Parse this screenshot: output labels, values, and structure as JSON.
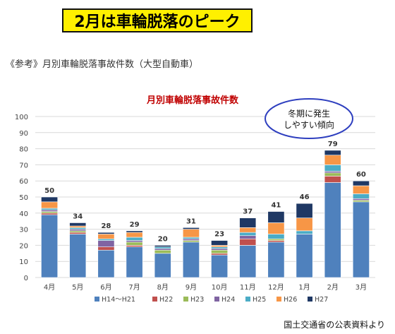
{
  "banner": {
    "text": "2月は車輪脱落のピーク"
  },
  "subtitle": "《参考》月別車輪脱落事故件数（大型自動車）",
  "source": "国土交通省の公表資料より",
  "annotation": {
    "line1": "冬期に発生",
    "line2": "しやすい傾向"
  },
  "colors": {
    "H14～H21": "#4f81bd",
    "H22": "#c0504d",
    "H23": "#9bbb59",
    "H24": "#8064a2",
    "H25": "#4bacc6",
    "H26": "#f79646",
    "H27": "#1f3864",
    "title": "#c00000",
    "annotation_border": "#2e3fbf"
  },
  "chart_data": {
    "type": "bar",
    "stacked": true,
    "title": "月別車輪脱落事故件数",
    "categories": [
      "4月",
      "5月",
      "6月",
      "7月",
      "8月",
      "9月",
      "10月",
      "11月",
      "12月",
      "1月",
      "2月",
      "3月"
    ],
    "totals": [
      50,
      34,
      28,
      29,
      20,
      31,
      23,
      37,
      41,
      46,
      79,
      60
    ],
    "series": [
      {
        "name": "H14～H21",
        "values": [
          39,
          27,
          17,
          19,
          15,
          22,
          14,
          20,
          22,
          27,
          59,
          47
        ]
      },
      {
        "name": "H22",
        "values": [
          1,
          1,
          2,
          1,
          0,
          0,
          1,
          4,
          1,
          0,
          4,
          0
        ]
      },
      {
        "name": "H23",
        "values": [
          1,
          1,
          0,
          2,
          2,
          1,
          2,
          0,
          1,
          0,
          2,
          1
        ]
      },
      {
        "name": "H24",
        "values": [
          1,
          1,
          4,
          1,
          1,
          1,
          1,
          2,
          0,
          0,
          1,
          1
        ]
      },
      {
        "name": "H25",
        "values": [
          1,
          1,
          1,
          2,
          1,
          1,
          1,
          2,
          3,
          2,
          4,
          3
        ]
      },
      {
        "name": "H26",
        "values": [
          4,
          1,
          3,
          3,
          0,
          5,
          1,
          3,
          7,
          8,
          6,
          5
        ]
      },
      {
        "name": "H27",
        "values": [
          3,
          2,
          1,
          1,
          1,
          1,
          3,
          6,
          7,
          9,
          3,
          3
        ]
      }
    ],
    "ylim": [
      0,
      100
    ],
    "yticks": [
      0,
      10,
      20,
      30,
      40,
      50,
      60,
      70,
      80,
      90,
      100
    ],
    "grid": true,
    "legend": "bottom"
  }
}
